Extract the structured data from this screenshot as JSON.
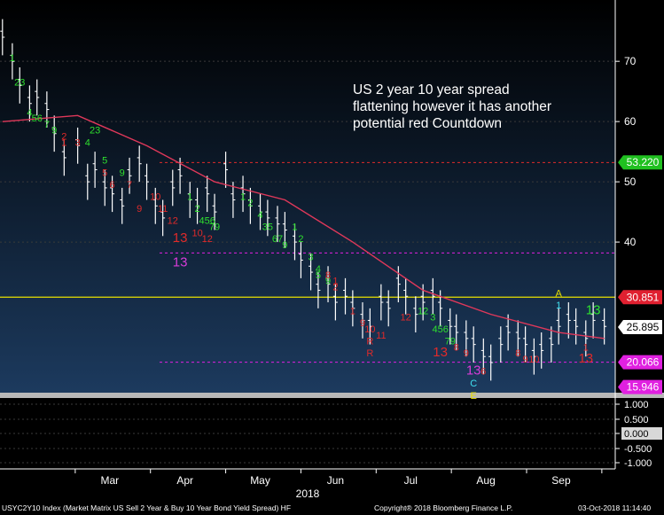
{
  "annotation": "US 2 year 10 year spread flattening however it has another potential red Countdown",
  "footer": {
    "left": "USYC2Y10 Index (Market Matrix US Sell 2 Year & Buy 10 Year Bond Yield Spread) HF",
    "center": "Copyright® 2018 Bloomberg Finance L.P.",
    "right": "03-Oct-2018 11:14:40"
  },
  "colors": {
    "background_top": "#000000",
    "background_bottom": "#1c3a5e",
    "moving_average": "#e0385a",
    "setup_green": "#2ee02e",
    "countdown_red": "#e02a2a",
    "magenta_13": "#d83cd8",
    "yellow_line": "#e8e000",
    "last_price_tag": "#ffffff",
    "upper_tag": "#e02030",
    "lower_tag": "#e020e0",
    "ma_tag": "#20c020"
  },
  "chart_data": {
    "type": "line",
    "title": "",
    "xlabel": "",
    "ylabel": "",
    "x_axis_year": "2018",
    "x_ticks": [
      "Mar",
      "Apr",
      "May",
      "Jun",
      "Jul",
      "Aug",
      "Sep"
    ],
    "y_ticks": [
      40,
      50,
      60,
      70
    ],
    "ylim": [
      15,
      79
    ],
    "series": [
      {
        "style": "hlc-bars",
        "x": [
          "02-Feb",
          "06-Feb",
          "09-Feb",
          "13-Feb",
          "16-Feb",
          "20-Feb",
          "23-Feb",
          "27-Feb",
          "02-Mar",
          "06-Mar",
          "09-Mar",
          "13-Mar",
          "16-Mar",
          "20-Mar",
          "23-Mar",
          "27-Mar",
          "30-Mar",
          "03-Apr",
          "06-Apr",
          "10-Apr",
          "13-Apr",
          "17-Apr",
          "20-Apr",
          "24-Apr",
          "27-Apr",
          "01-May",
          "04-May",
          "08-May",
          "11-May",
          "15-May",
          "18-May",
          "22-May",
          "25-May",
          "29-May",
          "01-Jun",
          "05-Jun",
          "08-Jun",
          "12-Jun",
          "15-Jun",
          "19-Jun",
          "22-Jun",
          "26-Jun",
          "29-Jun",
          "03-Jul",
          "06-Jul",
          "10-Jul",
          "13-Jul",
          "17-Jul",
          "20-Jul",
          "24-Jul",
          "27-Jul",
          "31-Jul",
          "03-Aug",
          "07-Aug",
          "10-Aug",
          "14-Aug",
          "17-Aug",
          "21-Aug",
          "24-Aug",
          "28-Aug",
          "31-Aug",
          "04-Sep",
          "07-Sep",
          "11-Sep",
          "14-Sep",
          "18-Sep",
          "21-Sep",
          "25-Sep",
          "28-Sep",
          "02-Oct"
        ],
        "values": [
          74,
          70,
          66,
          63,
          64,
          62,
          58,
          54,
          56,
          50,
          52,
          49,
          48,
          46,
          51,
          53,
          50,
          46,
          44,
          49,
          51,
          47,
          46,
          48,
          45,
          52,
          47,
          48,
          46,
          45,
          44,
          43,
          42,
          40,
          37,
          35,
          32,
          33,
          30,
          31,
          29,
          27,
          26,
          30,
          29,
          33,
          31,
          28,
          30,
          31,
          29,
          26,
          25,
          24,
          23,
          21,
          20,
          23,
          25,
          24,
          23,
          21,
          22,
          23,
          26,
          27,
          26,
          24,
          27,
          26
        ]
      },
      {
        "name": "",
        "style": "moving-average",
        "x": [
          "02-Feb",
          "02-Mar",
          "30-Mar",
          "27-Apr",
          "25-May",
          "22-Jun",
          "20-Jul",
          "17-Aug",
          "14-Sep",
          "02-Oct"
        ],
        "values": [
          60,
          61,
          56,
          50,
          47,
          40,
          32,
          28,
          25,
          24
        ]
      }
    ],
    "reference_lines": [
      {
        "value": 30.851,
        "color": "#e8e000"
      },
      {
        "value": 20.066,
        "color": "#e020e0"
      },
      {
        "value": 38.2,
        "color": "#e020e0"
      },
      {
        "value": 53.2,
        "color": "#e02a2a"
      }
    ],
    "price_tags": [
      {
        "label": "53.220",
        "kind": "ma"
      },
      {
        "label": "30.851",
        "kind": "upper"
      },
      {
        "label": "25.895",
        "kind": "last"
      },
      {
        "label": "20.066",
        "kind": "lower"
      },
      {
        "label": "15.946",
        "kind": "lower"
      }
    ],
    "markers": [
      {
        "text": "1",
        "x": "06-Feb",
        "y": 70,
        "color": "green"
      },
      {
        "text": "23",
        "x": "09-Feb",
        "y": 66,
        "color": "green"
      },
      {
        "text": "4",
        "x": "13-Feb",
        "y": 61,
        "color": "green"
      },
      {
        "text": "56",
        "x": "16-Feb",
        "y": 60,
        "color": "green"
      },
      {
        "text": "7",
        "x": "20-Feb",
        "y": 59,
        "color": "green"
      },
      {
        "text": "9",
        "x": "23-Feb",
        "y": 58,
        "color": "green"
      },
      {
        "text": "1",
        "x": "27-Feb",
        "y": 56,
        "color": "red"
      },
      {
        "text": "2",
        "x": "27-Feb",
        "y": 57,
        "color": "red"
      },
      {
        "text": "3",
        "x": "02-Mar",
        "y": 56,
        "color": "red"
      },
      {
        "text": "4",
        "x": "06-Mar",
        "y": 56,
        "color": "green"
      },
      {
        "text": "23",
        "x": "09-Mar",
        "y": 58,
        "color": "green"
      },
      {
        "text": "5",
        "x": "13-Mar",
        "y": 53,
        "color": "green"
      },
      {
        "text": "5",
        "x": "13-Mar",
        "y": 51,
        "color": "red"
      },
      {
        "text": "6",
        "x": "16-Mar",
        "y": 49,
        "color": "red"
      },
      {
        "text": "9",
        "x": "20-Mar",
        "y": 51,
        "color": "green"
      },
      {
        "text": "7",
        "x": "23-Mar",
        "y": 49,
        "color": "red"
      },
      {
        "text": "9",
        "x": "27-Mar",
        "y": 45,
        "color": "red"
      },
      {
        "text": "10",
        "x": "03-Apr",
        "y": 47,
        "color": "red"
      },
      {
        "text": "11",
        "x": "06-Apr",
        "y": 45,
        "color": "red"
      },
      {
        "text": "12",
        "x": "10-Apr",
        "y": 43,
        "color": "red"
      },
      {
        "text": "13",
        "x": "13-Apr",
        "y": 40,
        "color": "red"
      },
      {
        "text": "13",
        "x": "13-Apr",
        "y": 36,
        "color": "magenta"
      },
      {
        "text": "1",
        "x": "17-Apr",
        "y": 47,
        "color": "green"
      },
      {
        "text": "2",
        "x": "20-Apr",
        "y": 45,
        "color": "green"
      },
      {
        "text": "456",
        "x": "24-Apr",
        "y": 43,
        "color": "green"
      },
      {
        "text": "79",
        "x": "27-Apr",
        "y": 42,
        "color": "green"
      },
      {
        "text": "10",
        "x": "20-Apr",
        "y": 41,
        "color": "red"
      },
      {
        "text": "12",
        "x": "24-Apr",
        "y": 40,
        "color": "red"
      },
      {
        "text": "1",
        "x": "08-May",
        "y": 47,
        "color": "green"
      },
      {
        "text": "2",
        "x": "11-May",
        "y": 46,
        "color": "green"
      },
      {
        "text": "4",
        "x": "15-May",
        "y": 44,
        "color": "green"
      },
      {
        "text": "35",
        "x": "18-May",
        "y": 42,
        "color": "green"
      },
      {
        "text": "67",
        "x": "22-May",
        "y": 40,
        "color": "green"
      },
      {
        "text": "9",
        "x": "25-May",
        "y": 39,
        "color": "green"
      },
      {
        "text": "1",
        "x": "29-May",
        "y": 42,
        "color": "green"
      },
      {
        "text": "2",
        "x": "01-Jun",
        "y": 40,
        "color": "green"
      },
      {
        "text": "3",
        "x": "05-Jun",
        "y": 37,
        "color": "green"
      },
      {
        "text": "4",
        "x": "08-Jun",
        "y": 35,
        "color": "green"
      },
      {
        "text": "5",
        "x": "08-Jun",
        "y": 34,
        "color": "green"
      },
      {
        "text": "9",
        "x": "12-Jun",
        "y": 33,
        "color": "green"
      },
      {
        "text": "8",
        "x": "12-Jun",
        "y": 34,
        "color": "red"
      },
      {
        "text": "1",
        "x": "15-Jun",
        "y": 33,
        "color": "red"
      },
      {
        "text": "2",
        "x": "15-Jun",
        "y": 32,
        "color": "red"
      },
      {
        "text": "1",
        "x": "22-Jun",
        "y": 28,
        "color": "red"
      },
      {
        "text": "9",
        "x": "26-Jun",
        "y": 26,
        "color": "red"
      },
      {
        "text": "10",
        "x": "29-Jun",
        "y": 25,
        "color": "red"
      },
      {
        "text": "11",
        "x": "03-Jul",
        "y": 24,
        "color": "red"
      },
      {
        "text": "R",
        "x": "29-Jun",
        "y": 23,
        "color": "red"
      },
      {
        "text": "R",
        "x": "29-Jun",
        "y": 21,
        "color": "red"
      },
      {
        "text": "12",
        "x": "13-Jul",
        "y": 27,
        "color": "red"
      },
      {
        "text": "12",
        "x": "20-Jul",
        "y": 28,
        "color": "green"
      },
      {
        "text": "3",
        "x": "24-Jul",
        "y": 27,
        "color": "green"
      },
      {
        "text": "456",
        "x": "27-Jul",
        "y": 25,
        "color": "green"
      },
      {
        "text": "79",
        "x": "31-Jul",
        "y": 23,
        "color": "green"
      },
      {
        "text": "13",
        "x": "27-Jul",
        "y": 21,
        "color": "red"
      },
      {
        "text": "8",
        "x": "03-Aug",
        "y": 22,
        "color": "red"
      },
      {
        "text": "9",
        "x": "07-Aug",
        "y": 21,
        "color": "red"
      },
      {
        "text": "13",
        "x": "10-Aug",
        "y": 18,
        "color": "magenta"
      },
      {
        "text": "6",
        "x": "14-Aug",
        "y": 18,
        "color": "red"
      },
      {
        "text": "C",
        "x": "10-Aug",
        "y": 16,
        "color": "cyan"
      },
      {
        "text": "E",
        "x": "10-Aug",
        "y": 14,
        "color": "yellow"
      },
      {
        "text": "8",
        "x": "28-Aug",
        "y": 21,
        "color": "red"
      },
      {
        "text": "9",
        "x": "31-Aug",
        "y": 20,
        "color": "red"
      },
      {
        "text": "10",
        "x": "04-Sep",
        "y": 20,
        "color": "red"
      },
      {
        "text": "A",
        "x": "14-Sep",
        "y": 31,
        "color": "yellow"
      },
      {
        "text": "1",
        "x": "14-Sep",
        "y": 29,
        "color": "cyan"
      },
      {
        "text": "13",
        "x": "25-Sep",
        "y": 20,
        "color": "red"
      },
      {
        "text": "1",
        "x": "25-Sep",
        "y": 22,
        "color": "red"
      },
      {
        "text": "13",
        "x": "28-Sep",
        "y": 28,
        "color": "green"
      }
    ],
    "lower_panel": {
      "y_ticks": [
        "1.000",
        "0.500",
        "0.000",
        "-0.500",
        "-1.000"
      ],
      "last_value": "0.000"
    }
  }
}
